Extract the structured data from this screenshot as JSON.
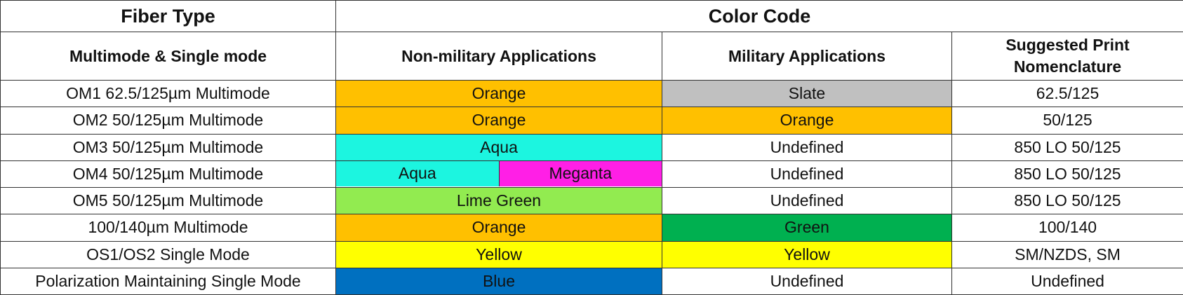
{
  "header": {
    "fiber_type": "Fiber Type",
    "color_code": "Color Code"
  },
  "subheader": {
    "mode": "Multimode & Single mode",
    "non_military": "Non-military Applications",
    "military": "Military Applications",
    "print_line1": "Suggested Print",
    "print_line2": "Nomenclature"
  },
  "colors": {
    "Orange": "#FFC000",
    "Slate": "#C0C0C0",
    "Aqua": "#1CF5E0",
    "Meganta": "#FF1FE6",
    "Lime Green": "#92EB50",
    "Green": "#00B050",
    "Yellow": "#FFFF00",
    "Blue": "#0070C0",
    "Undefined": "#FFFFFF"
  },
  "rows": [
    {
      "fiber": "OM1 62.5/125µm Multimode",
      "non_military": [
        "Orange"
      ],
      "military": "Slate",
      "print": "62.5/125"
    },
    {
      "fiber": "OM2 50/125µm Multimode",
      "non_military": [
        "Orange"
      ],
      "military": "Orange",
      "print": "50/125"
    },
    {
      "fiber": "OM3 50/125µm Multimode",
      "non_military": [
        "Aqua"
      ],
      "military": "Undefined",
      "print": "850 LO 50/125"
    },
    {
      "fiber": "OM4 50/125µm Multimode",
      "non_military": [
        "Aqua",
        "Meganta"
      ],
      "military": "Undefined",
      "print": "850 LO 50/125"
    },
    {
      "fiber": "OM5 50/125µm Multimode",
      "non_military": [
        "Lime Green"
      ],
      "military": "Undefined",
      "print": "850 LO 50/125"
    },
    {
      "fiber": "100/140µm Multimode",
      "non_military": [
        "Orange"
      ],
      "military": "Green",
      "print": "100/140"
    },
    {
      "fiber": "OS1/OS2 Single Mode",
      "non_military": [
        "Yellow"
      ],
      "military": "Yellow",
      "print": "SM/NZDS, SM"
    },
    {
      "fiber": "Polarization Maintaining Single Mode",
      "non_military": [
        "Blue"
      ],
      "military": "Undefined",
      "print": "Undefined"
    }
  ]
}
